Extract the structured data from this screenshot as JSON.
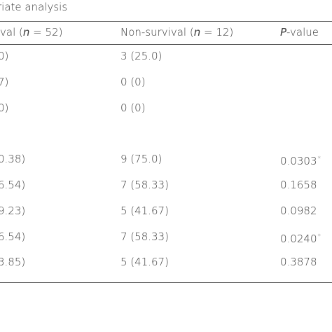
{
  "caption": "riate analysis",
  "header": [
    [
      "val (",
      {
        "i": "n"
      },
      " = 52)"
    ],
    [
      "Non-survival (",
      {
        "i": "n"
      },
      " = 12)"
    ],
    [
      {
        "i": "P"
      },
      "-value"
    ]
  ],
  "rows": [
    [
      "0)",
      "3 (25.0)"
    ],
    [
      "7)",
      "0 (0)"
    ],
    [
      "0)",
      "0 (0)"
    ],
    [],
    [
      "0.38)",
      "9 (75.0)",
      {
        "text": "0.0303",
        "sup": "*"
      }
    ],
    [
      "6.54)",
      "7 (58.33)",
      {
        "text": "0.1658"
      }
    ],
    [
      "9.23)",
      "5 (41.67)",
      {
        "text": "0.0982"
      }
    ],
    [
      "6.54)",
      "7 (58.33)",
      {
        "text": "0.0240",
        "sup": "*"
      }
    ],
    [
      "3.85)",
      "5 (41.67)",
      {
        "text": "0.3878"
      }
    ]
  ]
}
